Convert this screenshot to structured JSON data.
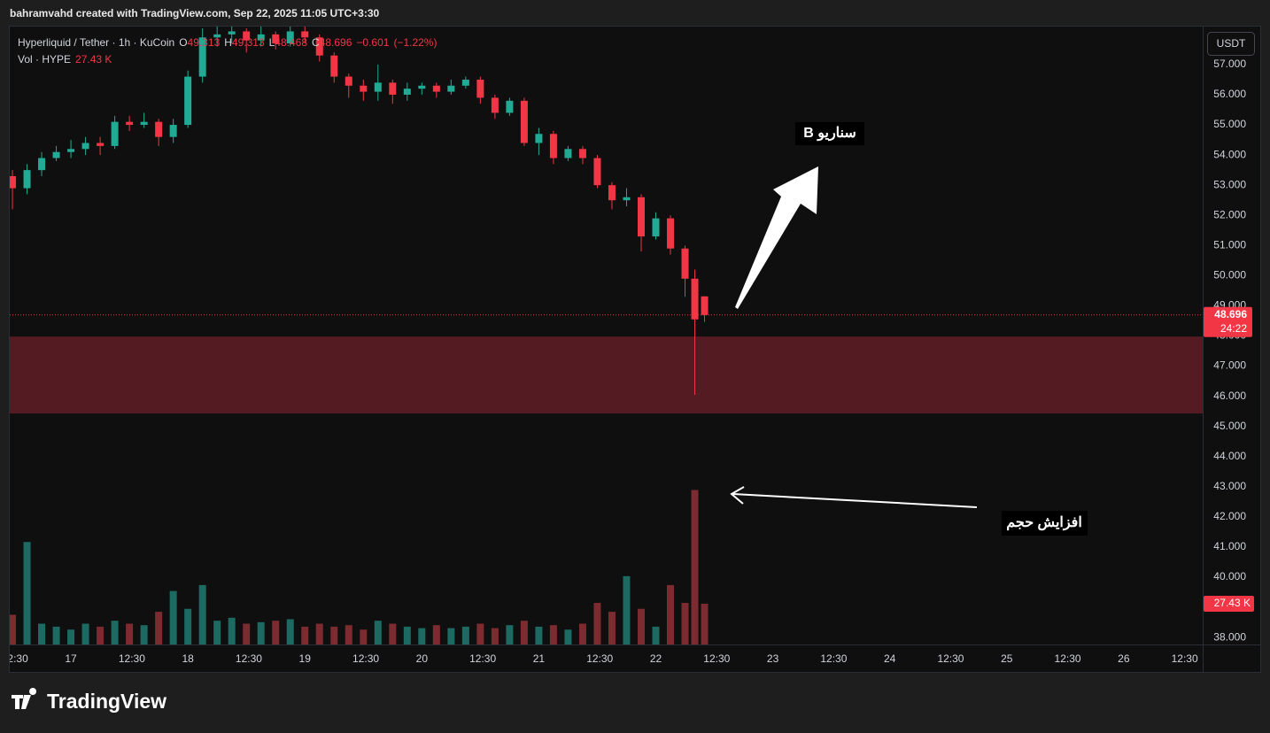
{
  "attribution": "bahramvahd created with TradingView.com, Sep 22, 2025 11:05 UTC+3:30",
  "brand": "TradingView",
  "chart_data": {
    "type": "candlestick",
    "title": "Hyperliquid / Tether · 1h · KuCoin",
    "ohlc_letters": [
      "O",
      "H",
      "L",
      "C"
    ],
    "change": {
      "value": -0.601,
      "label": "−0.601"
    },
    "change_pct": {
      "value": -1.22,
      "label": "(−1.22%)"
    },
    "currency": "USDT",
    "countdown": "24:22",
    "up_color": "#22ab94",
    "down_color": "#f23645",
    "candles": {
      "x": [
        12,
        15,
        18,
        21,
        24,
        27,
        30,
        33,
        36,
        39,
        42,
        45,
        48,
        51,
        54,
        57,
        60,
        63,
        66,
        69,
        72,
        75,
        78,
        81,
        84,
        87,
        90,
        93,
        96,
        99,
        102,
        105,
        108,
        111,
        114,
        117,
        120,
        123,
        126,
        129,
        132,
        135,
        138,
        141,
        144,
        147,
        150,
        152,
        154
      ],
      "open": [
        53.3,
        52.9,
        53.5,
        53.9,
        54.1,
        54.2,
        54.4,
        54.3,
        55.1,
        55.0,
        55.1,
        54.6,
        55.0,
        56.6,
        57.9,
        58.0,
        58.1,
        57.8,
        58.0,
        57.7,
        58.1,
        57.9,
        57.3,
        56.6,
        56.3,
        56.1,
        56.4,
        56.0,
        56.2,
        56.3,
        56.1,
        56.3,
        56.5,
        55.9,
        55.4,
        55.8,
        54.4,
        54.7,
        53.9,
        54.2,
        53.9,
        53.0,
        52.5,
        52.6,
        51.3,
        51.9,
        50.9,
        49.9,
        49.313
      ],
      "high": [
        53.5,
        53.7,
        54.1,
        54.3,
        54.5,
        54.6,
        54.6,
        55.3,
        55.3,
        55.4,
        55.2,
        55.2,
        56.8,
        58.2,
        58.3,
        58.4,
        58.2,
        58.3,
        58.1,
        58.3,
        58.3,
        58.0,
        57.4,
        56.7,
        56.5,
        57.0,
        56.5,
        56.4,
        56.4,
        56.4,
        56.5,
        56.6,
        56.6,
        56.0,
        55.9,
        55.9,
        54.9,
        54.8,
        54.3,
        54.3,
        54.0,
        53.1,
        52.9,
        52.7,
        52.1,
        52.0,
        51.0,
        50.2,
        49.313
      ],
      "low": [
        52.2,
        52.7,
        53.3,
        53.8,
        53.9,
        54.0,
        54.0,
        54.2,
        54.8,
        54.9,
        54.3,
        54.4,
        54.9,
        56.4,
        57.6,
        57.7,
        57.4,
        57.6,
        57.5,
        57.6,
        57.7,
        57.1,
        56.4,
        55.9,
        55.8,
        55.8,
        55.7,
        55.8,
        56.0,
        55.9,
        56.0,
        56.2,
        55.7,
        55.2,
        55.3,
        54.3,
        54.0,
        53.7,
        53.8,
        53.7,
        52.9,
        52.2,
        52.3,
        50.8,
        51.2,
        50.7,
        49.3,
        46.05,
        48.468
      ],
      "close": [
        52.9,
        53.5,
        53.9,
        54.1,
        54.2,
        54.4,
        54.3,
        55.1,
        55.0,
        55.1,
        54.6,
        55.0,
        56.6,
        57.9,
        58.0,
        58.1,
        57.8,
        58.0,
        57.7,
        58.1,
        57.9,
        57.3,
        56.6,
        56.3,
        56.1,
        56.4,
        56.0,
        56.2,
        56.3,
        56.1,
        56.3,
        56.5,
        55.9,
        55.4,
        55.8,
        54.4,
        54.7,
        53.9,
        54.2,
        53.9,
        53.0,
        52.5,
        52.6,
        51.3,
        51.9,
        50.9,
        49.9,
        48.55,
        48.696
      ]
    },
    "volume": {
      "name": "Vol · HYPE",
      "up_color": "#1d6a62",
      "down_color": "#7c2b30",
      "values": [
        20,
        69,
        14,
        12,
        10,
        14,
        12,
        16,
        14,
        13,
        22,
        36,
        24,
        40,
        16,
        18,
        14,
        15,
        16,
        17,
        12,
        14,
        12,
        13,
        10,
        16,
        14,
        12,
        11,
        13,
        11,
        12,
        14,
        11,
        13,
        16,
        12,
        13,
        10,
        14,
        28,
        22,
        46,
        24,
        12,
        40,
        28,
        104,
        27.43
      ],
      "last_value_label": "27.43 K",
      "ylim": [
        0,
        416
      ]
    },
    "zone": [
      45.43,
      47.98
    ],
    "zone_color": "#541c22",
    "xlim": [
      11.45,
      256.2
    ],
    "ylim": [
      37.77,
      58.26
    ],
    "xticks": [
      {
        "value": 12.5,
        "label": "12:30"
      },
      {
        "value": 24,
        "label": "17"
      },
      {
        "value": 36.5,
        "label": "12:30"
      },
      {
        "value": 48,
        "label": "18"
      },
      {
        "value": 60.5,
        "label": "12:30"
      },
      {
        "value": 72,
        "label": "19"
      },
      {
        "value": 84.5,
        "label": "12:30"
      },
      {
        "value": 96,
        "label": "20"
      },
      {
        "value": 108.5,
        "label": "12:30"
      },
      {
        "value": 120,
        "label": "21"
      },
      {
        "value": 132.5,
        "label": "12:30"
      },
      {
        "value": 144,
        "label": "22"
      },
      {
        "value": 156.5,
        "label": "12:30"
      },
      {
        "value": 168,
        "label": "23"
      },
      {
        "value": 180.5,
        "label": "12:30"
      },
      {
        "value": 192,
        "label": "24"
      },
      {
        "value": 204.5,
        "label": "12:30"
      },
      {
        "value": 216,
        "label": "25"
      },
      {
        "value": 228.5,
        "label": "12:30"
      },
      {
        "value": 240,
        "label": "26"
      },
      {
        "value": 252.5,
        "label": "12:30"
      }
    ],
    "yticks": [
      {
        "value": 38,
        "label": "38.000"
      },
      {
        "value": 39,
        "label": "39.000"
      },
      {
        "value": 40,
        "label": "40.000"
      },
      {
        "value": 41,
        "label": "41.000"
      },
      {
        "value": 42,
        "label": "42.000"
      },
      {
        "value": 43,
        "label": "43.000"
      },
      {
        "value": 44,
        "label": "44.000"
      },
      {
        "value": 45,
        "label": "45.000"
      },
      {
        "value": 46,
        "label": "46.000"
      },
      {
        "value": 47,
        "label": "47.000"
      },
      {
        "value": 48,
        "label": "48.000"
      },
      {
        "value": 49,
        "label": "49.000"
      },
      {
        "value": 50,
        "label": "50.000"
      },
      {
        "value": 51,
        "label": "51.000"
      },
      {
        "value": 52,
        "label": "52.000"
      },
      {
        "value": 53,
        "label": "53.000"
      },
      {
        "value": 54,
        "label": "54.000"
      },
      {
        "value": 55,
        "label": "55.000"
      },
      {
        "value": 56,
        "label": "56.000"
      },
      {
        "value": 57,
        "label": "57.000"
      }
    ],
    "annotations": [
      "سناریو B",
      "افزایش حجم"
    ],
    "grid": false
  }
}
